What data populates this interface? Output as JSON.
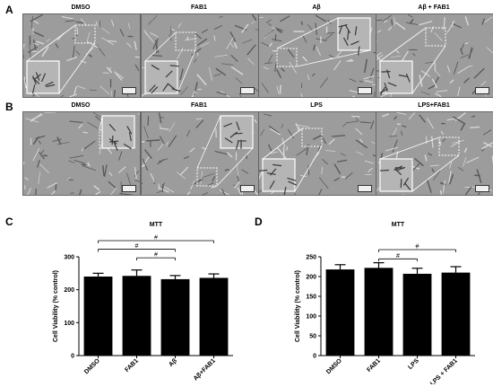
{
  "figure": {
    "panels": [
      {
        "letter": "A",
        "images": [
          {
            "label": "DMSO"
          },
          {
            "label": "FAB1"
          },
          {
            "label": "Aβ"
          },
          {
            "label": "Aβ + FAB1"
          }
        ]
      },
      {
        "letter": "B",
        "images": [
          {
            "label": "DMSO"
          },
          {
            "label": "FAB1"
          },
          {
            "label": "LPS"
          },
          {
            "label": "LPS+FAB1"
          }
        ]
      }
    ],
    "colors": {
      "bar": "#000000",
      "background": "#ffffff",
      "micrograph": "#9c9c9c"
    }
  },
  "chart_data": [
    {
      "panel": "C",
      "type": "bar",
      "title": "MTT",
      "xlabel": "",
      "ylabel": "Cell Viability (% control)",
      "categories": [
        "DMSO",
        "FAB1",
        "Aβ",
        "Aβ+FAB1"
      ],
      "values": [
        240,
        242,
        232,
        236
      ],
      "errors": [
        10,
        18,
        11,
        12
      ],
      "ylim": [
        0,
        300
      ],
      "yticks": [
        0,
        100,
        200,
        300
      ],
      "grid": false,
      "significance": [
        {
          "from": 0,
          "to": 2,
          "label": "#"
        },
        {
          "from": 0,
          "to": 3,
          "label": "#"
        },
        {
          "from": 1,
          "to": 2,
          "label": "#"
        }
      ]
    },
    {
      "panel": "D",
      "type": "bar",
      "title": "MTT",
      "xlabel": "",
      "ylabel": "Cell Viability (% control)",
      "categories": [
        "DMSO",
        "FAB1",
        "LPS",
        "LPS + FAB1"
      ],
      "values": [
        218,
        222,
        207,
        210
      ],
      "errors": [
        12,
        13,
        14,
        15
      ],
      "ylim": [
        0,
        250
      ],
      "yticks": [
        0,
        50,
        100,
        150,
        200,
        250
      ],
      "grid": false,
      "significance": [
        {
          "from": 1,
          "to": 2,
          "label": "#"
        },
        {
          "from": 1,
          "to": 3,
          "label": "#"
        }
      ]
    }
  ]
}
